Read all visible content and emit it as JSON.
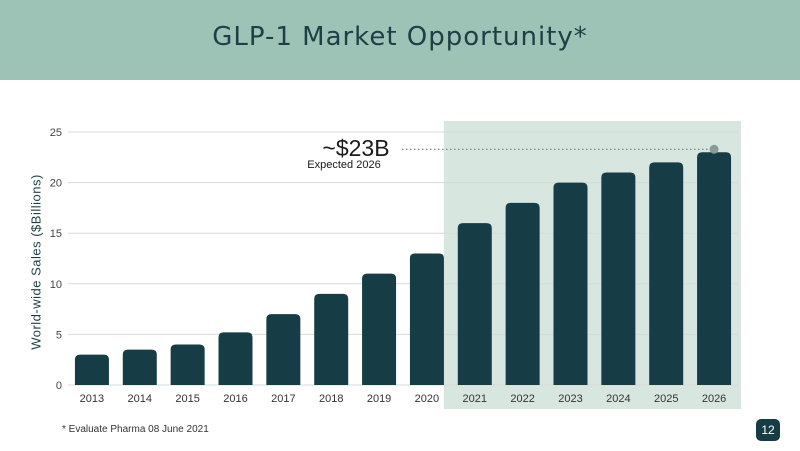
{
  "slide": {
    "title": "GLP-1 Market Opportunity*",
    "footnote": "* Evaluate Pharma 08 June 2021",
    "page_number": "12"
  },
  "colors": {
    "header_bg": "#9dc2b6",
    "title_text": "#1d3f45",
    "bar": "#163c45",
    "forecast_shade": "#d8e6e0",
    "grid": "#d9d9d9",
    "marker": "#8a9c98"
  },
  "chart_data": {
    "type": "bar",
    "title": "",
    "xlabel": "",
    "ylabel": "World-wide Sales ($Billions)",
    "ylim": [
      0,
      25
    ],
    "yticks": [
      0,
      5,
      10,
      15,
      20,
      25
    ],
    "grid": true,
    "categories": [
      "2013",
      "2014",
      "2015",
      "2016",
      "2017",
      "2018",
      "2019",
      "2020",
      "2021",
      "2022",
      "2023",
      "2024",
      "2025",
      "2026"
    ],
    "values": [
      3,
      3.5,
      4,
      5.2,
      7,
      9,
      11,
      13,
      16,
      18,
      20,
      21,
      22,
      23
    ],
    "highlight_range": [
      "2021",
      "2026"
    ],
    "annotation": {
      "value_label": "~$23B",
      "sub_label": "Expected 2026",
      "target_category": "2026"
    }
  }
}
